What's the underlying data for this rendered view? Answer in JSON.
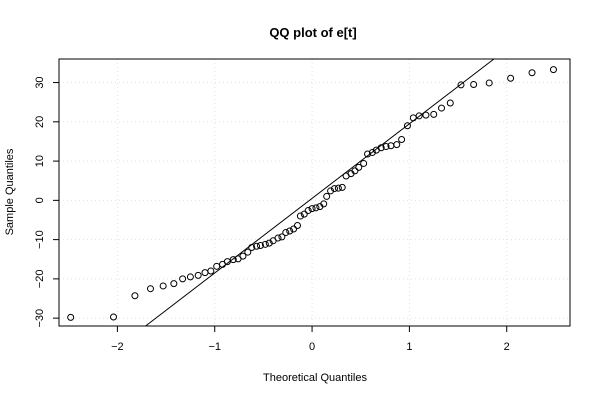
{
  "chart_data": {
    "type": "scatter",
    "title": "QQ plot of e[t]",
    "xlabel": "Theoretical Quantiles",
    "ylabel": "Sample Quantiles",
    "xlim": [
      -2.6,
      2.65
    ],
    "ylim": [
      -32,
      36
    ],
    "xticks": [
      -2,
      -1,
      0,
      1,
      2
    ],
    "yticks": [
      -30,
      -20,
      -10,
      0,
      10,
      20,
      30
    ],
    "grid": true,
    "reference_line": {
      "intercept": 0.5,
      "slope": 19.0
    },
    "points": [
      [
        -2.48,
        -29.8
      ],
      [
        -2.04,
        -29.7
      ],
      [
        -1.82,
        -24.3
      ],
      [
        -1.66,
        -22.5
      ],
      [
        -1.53,
        -21.8
      ],
      [
        -1.42,
        -21.2
      ],
      [
        -1.33,
        -20.0
      ],
      [
        -1.25,
        -19.5
      ],
      [
        -1.17,
        -19.1
      ],
      [
        -1.1,
        -18.4
      ],
      [
        -1.04,
        -18.0
      ],
      [
        -0.98,
        -16.8
      ],
      [
        -0.92,
        -16.3
      ],
      [
        -0.87,
        -15.6
      ],
      [
        -0.81,
        -15.1
      ],
      [
        -0.76,
        -14.9
      ],
      [
        -0.71,
        -14.2
      ],
      [
        -0.66,
        -13.2
      ],
      [
        -0.62,
        -12.0
      ],
      [
        -0.57,
        -11.7
      ],
      [
        -0.53,
        -11.5
      ],
      [
        -0.48,
        -11.2
      ],
      [
        -0.44,
        -10.9
      ],
      [
        -0.4,
        -10.3
      ],
      [
        -0.35,
        -9.6
      ],
      [
        -0.31,
        -9.3
      ],
      [
        -0.27,
        -8.2
      ],
      [
        -0.23,
        -7.8
      ],
      [
        -0.19,
        -7.3
      ],
      [
        -0.15,
        -6.4
      ],
      [
        -0.12,
        -4.0
      ],
      [
        -0.08,
        -3.5
      ],
      [
        -0.04,
        -2.6
      ],
      [
        0.0,
        -2.1
      ],
      [
        0.04,
        -1.9
      ],
      [
        0.08,
        -1.6
      ],
      [
        0.12,
        -0.9
      ],
      [
        0.15,
        1.0
      ],
      [
        0.19,
        2.4
      ],
      [
        0.23,
        3.0
      ],
      [
        0.27,
        3.1
      ],
      [
        0.31,
        3.3
      ],
      [
        0.35,
        6.2
      ],
      [
        0.4,
        6.8
      ],
      [
        0.44,
        7.5
      ],
      [
        0.48,
        8.4
      ],
      [
        0.53,
        9.4
      ],
      [
        0.57,
        11.8
      ],
      [
        0.62,
        12.2
      ],
      [
        0.66,
        12.8
      ],
      [
        0.71,
        13.4
      ],
      [
        0.76,
        13.7
      ],
      [
        0.81,
        13.9
      ],
      [
        0.87,
        14.2
      ],
      [
        0.92,
        15.5
      ],
      [
        0.98,
        19.0
      ],
      [
        1.04,
        21.0
      ],
      [
        1.1,
        21.5
      ],
      [
        1.17,
        21.7
      ],
      [
        1.25,
        21.9
      ],
      [
        1.33,
        23.5
      ],
      [
        1.42,
        24.8
      ],
      [
        1.53,
        29.4
      ],
      [
        1.66,
        29.5
      ],
      [
        1.82,
        29.9
      ],
      [
        2.04,
        31.1
      ],
      [
        2.26,
        32.5
      ],
      [
        2.48,
        33.3
      ]
    ]
  }
}
